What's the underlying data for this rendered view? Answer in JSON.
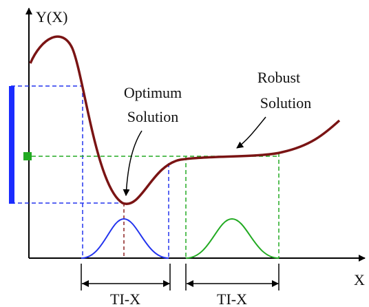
{
  "axes": {
    "y_label": "Y(X)",
    "x_label": "X"
  },
  "annotations": [
    {
      "lines": [
        "Optimum",
        "Solution"
      ]
    },
    {
      "lines": [
        "Robust",
        "Solution"
      ]
    }
  ],
  "intervals": [
    {
      "label": "TI-X"
    },
    {
      "label": "TI-X"
    }
  ]
}
